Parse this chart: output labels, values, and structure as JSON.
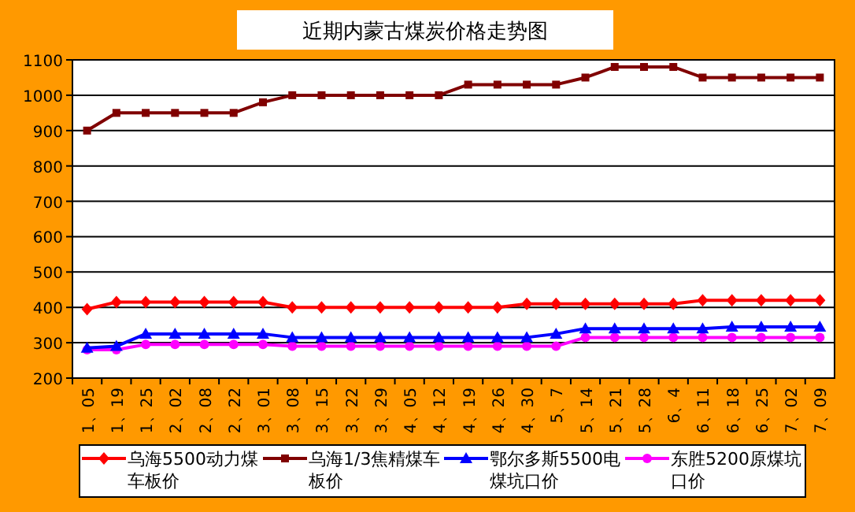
{
  "chart_data": {
    "type": "line",
    "title": "近期内蒙古煤炭价格走势图",
    "categories": [
      "1、05",
      "1、19",
      "1、25",
      "2、02",
      "2、08",
      "2、22",
      "3、01",
      "3、08",
      "3、15",
      "3、22",
      "3、29",
      "4、05",
      "4、12",
      "4、19",
      "4、26",
      "4、30",
      "5、7",
      "5、14",
      "5、21",
      "5、28",
      "6、4",
      "6、11",
      "6、18",
      "6、25",
      "7、02",
      "7、09"
    ],
    "series": [
      {
        "name": "乌海5500动力煤车板价",
        "color": "#ff0000",
        "marker": "diamond",
        "values": [
          395,
          415,
          415,
          415,
          415,
          415,
          415,
          400,
          400,
          400,
          400,
          400,
          400,
          400,
          400,
          410,
          410,
          410,
          410,
          410,
          410,
          420,
          420,
          420,
          420,
          420
        ]
      },
      {
        "name": "乌海1/3焦精煤车板价",
        "color": "#800000",
        "marker": "square",
        "values": [
          900,
          950,
          950,
          950,
          950,
          950,
          980,
          1000,
          1000,
          1000,
          1000,
          1000,
          1000,
          1030,
          1030,
          1030,
          1030,
          1050,
          1080,
          1080,
          1080,
          1050,
          1050,
          1050,
          1050,
          1050
        ]
      },
      {
        "name": "鄂尔多斯5500电煤坑口价",
        "color": "#0000ff",
        "marker": "triangle",
        "values": [
          285,
          290,
          325,
          325,
          325,
          325,
          325,
          315,
          315,
          315,
          315,
          315,
          315,
          315,
          315,
          315,
          325,
          340,
          340,
          340,
          340,
          340,
          345,
          345,
          345,
          345
        ]
      },
      {
        "name": "东胜5200原煤坑口价",
        "color": "#ff00ff",
        "marker": "circle",
        "values": [
          280,
          280,
          295,
          295,
          295,
          295,
          295,
          290,
          290,
          290,
          290,
          290,
          290,
          290,
          290,
          290,
          290,
          315,
          315,
          315,
          315,
          315,
          315,
          315,
          315,
          315
        ]
      }
    ],
    "ylim": [
      200,
      1100
    ],
    "yticks": [
      200,
      300,
      400,
      500,
      600,
      700,
      800,
      900,
      1000,
      1100
    ],
    "grid": "y",
    "legend": "bottom"
  }
}
